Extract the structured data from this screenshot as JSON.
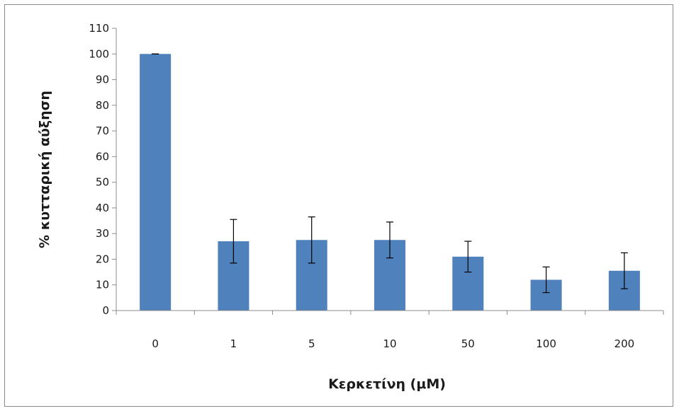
{
  "chart_data": {
    "type": "bar",
    "title": "",
    "xlabel": "Κερκετίνη (μM)",
    "ylabel": "% κυτταρική αύξηση",
    "categories": [
      "0",
      "1",
      "5",
      "10",
      "50",
      "100",
      "200"
    ],
    "values": [
      100,
      27,
      27.5,
      27.5,
      21,
      12,
      15.5
    ],
    "error": [
      0,
      8.5,
      9,
      7,
      6,
      5,
      7
    ],
    "ylim": [
      0,
      110
    ],
    "yticks": [
      0,
      10,
      20,
      30,
      40,
      50,
      60,
      70,
      80,
      90,
      100,
      110
    ],
    "grid": false,
    "legend": "none",
    "bar_color": "#4f81bd"
  }
}
